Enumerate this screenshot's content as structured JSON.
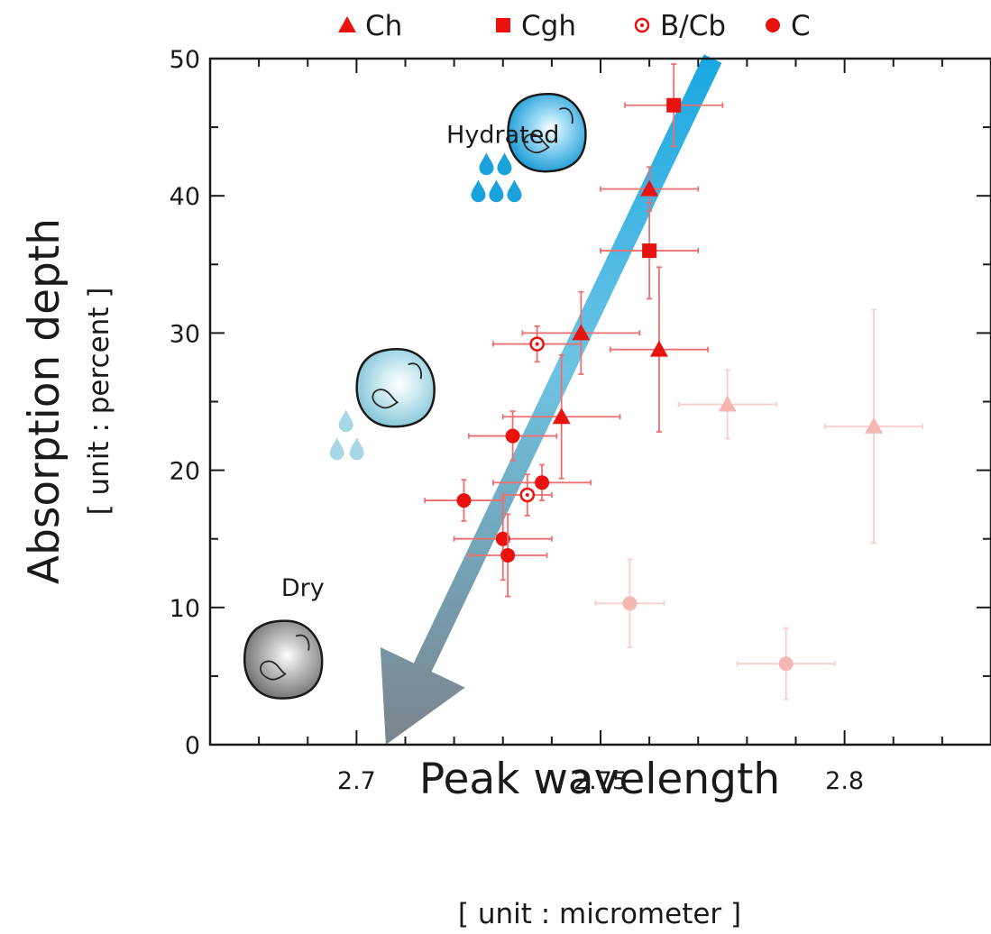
{
  "chart_data": {
    "type": "scatter",
    "xlabel": "Peak wavelength",
    "xunit": "[ unit : micrometer ]",
    "ylabel": "Absorption depth",
    "yunit": "[ unit : percent ]",
    "xlim": [
      2.67,
      2.83
    ],
    "ylim": [
      0,
      50
    ],
    "xticks": [
      "2.7",
      "2.75",
      "2.8"
    ],
    "yticks": [
      "0",
      "10",
      "20",
      "30",
      "40",
      "50"
    ],
    "grid": false,
    "legend_position": "top",
    "legend": [
      {
        "label": "Ch",
        "marker": "triangle"
      },
      {
        "label": "Cgh",
        "marker": "square"
      },
      {
        "label": "B/Cb",
        "marker": "open-circle"
      },
      {
        "label": "C",
        "marker": "circle"
      }
    ],
    "colors": {
      "points": "#e8120e",
      "error_bars": "#ee6f6f",
      "faded_points": "#f5b7b2",
      "faded_error_bars": "#f6cfcb",
      "arrow_top": "#1aa8e2",
      "arrow_bottom": "#7c858c"
    },
    "series": [
      {
        "name": "Ch",
        "marker": "triangle",
        "points": [
          {
            "x": 2.76,
            "y": 40.5,
            "xerr": 0.01,
            "yerr": 1.6
          },
          {
            "x": 2.746,
            "y": 30.0,
            "xerr": 0.012,
            "yerr": 3.0
          },
          {
            "x": 2.762,
            "y": 28.8,
            "xerr": 0.01,
            "yerr": 6.0
          },
          {
            "x": 2.742,
            "y": 23.9,
            "xerr": 0.012,
            "yerr": 4.5
          }
        ]
      },
      {
        "name": "Cgh",
        "marker": "square",
        "points": [
          {
            "x": 2.765,
            "y": 46.6,
            "xerr": 0.01,
            "yerr": 3.0
          },
          {
            "x": 2.76,
            "y": 36.0,
            "xerr": 0.01,
            "yerr": 3.5
          }
        ]
      },
      {
        "name": "B/Cb",
        "marker": "open-circle",
        "points": [
          {
            "x": 2.737,
            "y": 29.2,
            "xerr": 0.009,
            "yerr": 1.3
          },
          {
            "x": 2.735,
            "y": 18.2,
            "xerr": 0.005,
            "yerr": 1.5
          }
        ]
      },
      {
        "name": "C",
        "marker": "circle",
        "points": [
          {
            "x": 2.732,
            "y": 22.5,
            "xerr": 0.009,
            "yerr": 1.8
          },
          {
            "x": 2.738,
            "y": 19.1,
            "xerr": 0.01,
            "yerr": 1.3
          },
          {
            "x": 2.722,
            "y": 17.8,
            "xerr": 0.008,
            "yerr": 1.5
          },
          {
            "x": 2.73,
            "y": 15.0,
            "xerr": 0.01,
            "yerr": 3.0
          },
          {
            "x": 2.731,
            "y": 13.8,
            "xerr": 0.008,
            "yerr": 3.0
          }
        ]
      },
      {
        "marker": "triangle",
        "faded": true,
        "points": [
          {
            "x": 2.776,
            "y": 24.8,
            "xerr": 0.01,
            "yerr": 2.5
          },
          {
            "x": 2.806,
            "y": 23.2,
            "xerr": 0.01,
            "yerr": 8.5
          }
        ]
      },
      {
        "marker": "circle",
        "faded": true,
        "points": [
          {
            "x": 2.756,
            "y": 10.3,
            "xerr": 0.007,
            "yerr": 3.2
          },
          {
            "x": 2.788,
            "y": 5.9,
            "xerr": 0.01,
            "yerr": 2.6
          }
        ]
      }
    ],
    "trend_arrow": {
      "from": {
        "x": 2.773,
        "y": 50
      },
      "to": {
        "x": 2.706,
        "y": 0
      }
    },
    "annotations": [
      {
        "text": "Hydrated",
        "x": 2.73,
        "y": 44.5
      },
      {
        "text": "Dry",
        "x": 2.689,
        "y": 11.5
      }
    ],
    "illustrations": [
      {
        "name": "hydrated-asteroid",
        "x": 2.739,
        "y": 44.6,
        "drops": 5,
        "color": "#1ba1dc"
      },
      {
        "name": "partly-hydrated-asteroid",
        "x": 2.708,
        "y": 26.0,
        "drops": 3,
        "color": "#a7d7e5"
      },
      {
        "name": "dry-asteroid",
        "x": 2.685,
        "y": 6.2,
        "drops": 0,
        "color": "#8f8f8f"
      }
    ]
  }
}
